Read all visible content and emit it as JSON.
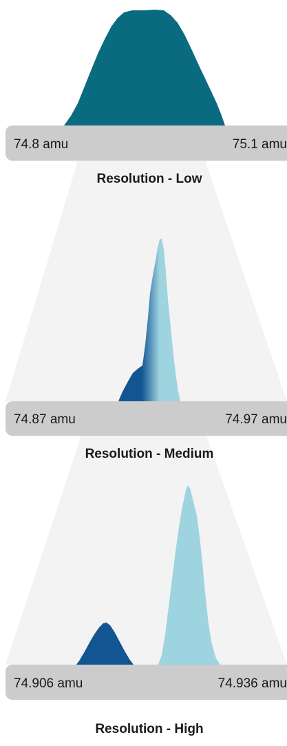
{
  "panels": [
    {
      "id": "low",
      "caption": "Resolution - Low",
      "left_label": "74.8 amu",
      "right_label": "75.1 amu"
    },
    {
      "id": "medium",
      "caption": "Resolution - Medium",
      "left_label": "74.87 amu",
      "right_label": "74.97 amu"
    },
    {
      "id": "high",
      "caption": "Resolution - High",
      "left_label": "74.906 amu",
      "right_label": "74.936 amu"
    }
  ],
  "colors": {
    "teal_peak": "#0a6a80",
    "dark_blue_peak": "#135592",
    "light_blue_peak": "#9ed3e0",
    "bar_fill": "#cccccc",
    "funnel_fill": "#f3f3f3",
    "text": "#1a1a1a"
  }
}
